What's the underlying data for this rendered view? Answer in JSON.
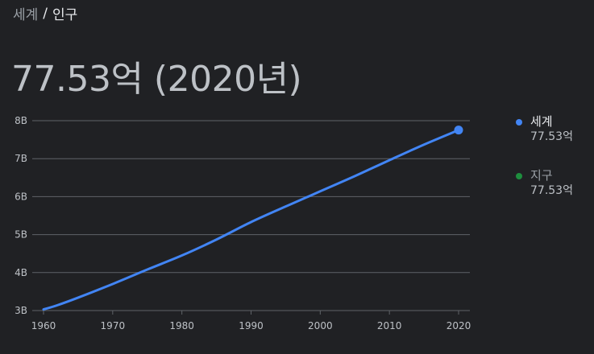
{
  "breadcrumb": {
    "parent": "세계",
    "separator": "/",
    "current": "인구"
  },
  "headline": "77.53억 (2020년)",
  "colors": {
    "series_world": "#4285f4",
    "series_earth": "#1e8e3e",
    "grid": "#5f6368",
    "axis_text": "#bdc1c6",
    "background": "#202124"
  },
  "legend": [
    {
      "name": "세계",
      "value": "77.53억",
      "color": "#4285f4"
    },
    {
      "name": "지구",
      "value": "77.53억",
      "color": "#1e8e3e"
    }
  ],
  "chart_data": {
    "type": "line",
    "title": "",
    "xlabel": "",
    "ylabel": "",
    "xlim": [
      1960,
      2020
    ],
    "ylim": [
      3,
      8
    ],
    "x_ticks": [
      1960,
      1970,
      1980,
      1990,
      2000,
      2010,
      2020
    ],
    "y_ticks": [
      3,
      4,
      5,
      6,
      7,
      8
    ],
    "y_tick_labels": [
      "3B",
      "4B",
      "5B",
      "6B",
      "7B",
      "8B"
    ],
    "grid": true,
    "legend_position": "right",
    "series": [
      {
        "name": "세계",
        "x": [
          1960,
          1962,
          1965,
          1970,
          1975,
          1980,
          1985,
          1990,
          1995,
          2000,
          2005,
          2010,
          2015,
          2020
        ],
        "y": [
          3.03,
          3.14,
          3.34,
          3.7,
          4.08,
          4.45,
          4.87,
          5.33,
          5.74,
          6.14,
          6.54,
          6.96,
          7.37,
          7.753
        ]
      }
    ],
    "highlight_point": {
      "x": 2020,
      "y": 7.753
    }
  }
}
